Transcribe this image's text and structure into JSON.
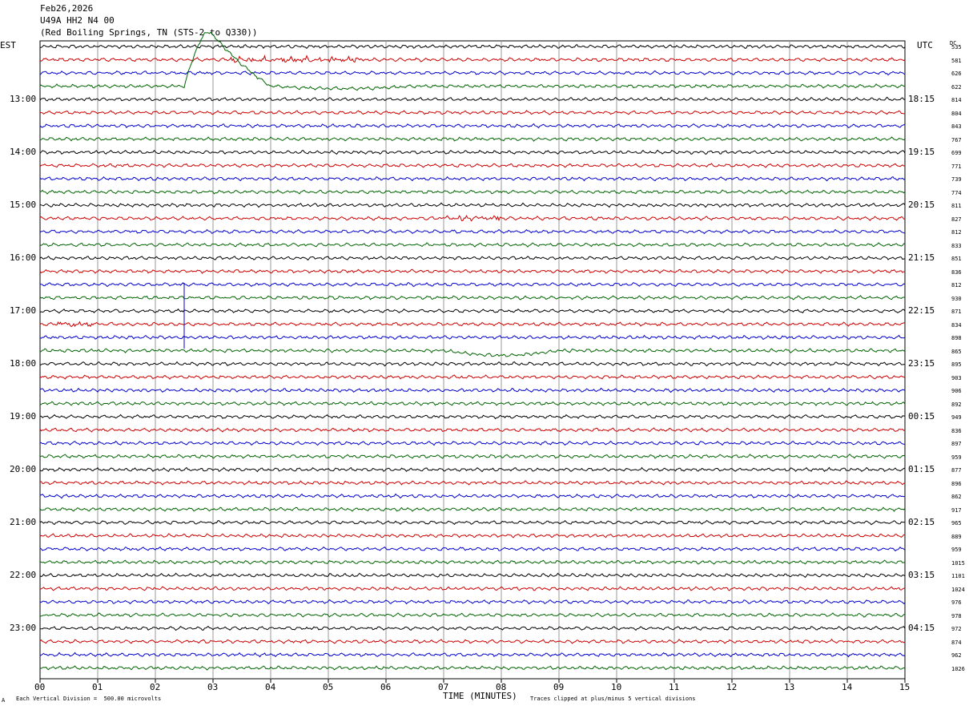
{
  "header": {
    "date": "Feb26,2026",
    "channel": "U49A HH2 N4 00",
    "site": "(Red Boiling Springs, TN (STS-2 to Q330))"
  },
  "left_tz": "EST",
  "right_tz": "UTC",
  "dc_label": "DC",
  "left_hours": [
    "13:00",
    "14:00",
    "15:00",
    "16:00",
    "17:00",
    "18:00",
    "19:00",
    "20:00",
    "21:00",
    "22:00",
    "23:00"
  ],
  "right_hours": [
    "18:15",
    "19:15",
    "20:15",
    "21:15",
    "22:15",
    "23:15",
    "00:15",
    "01:15",
    "02:15",
    "03:15",
    "04:15"
  ],
  "dc_values": [
    "535",
    "581",
    "626",
    "622",
    "814",
    "804",
    "843",
    "767",
    "699",
    "771",
    "739",
    "774",
    "811",
    "827",
    "812",
    "833",
    "851",
    "836",
    "812",
    "930",
    "871",
    "834",
    "898",
    "865",
    "895",
    "903",
    "906",
    "892",
    "949",
    "836",
    "897",
    "959",
    "877",
    "896",
    "862",
    "917",
    "965",
    "889",
    "959",
    "1015",
    "1101",
    "1024",
    "976",
    "978",
    "972",
    "874",
    "962",
    "1026"
  ],
  "x_ticks": [
    "00",
    "01",
    "02",
    "03",
    "04",
    "05",
    "06",
    "07",
    "08",
    "09",
    "10",
    "11",
    "12",
    "13",
    "14",
    "15"
  ],
  "x_axis_title": "TIME (MINUTES)",
  "footer_left": "Each Vertical Division =  500.00 microvolts",
  "footer_right": "Traces clipped at plus/minus 5 vertical divisions",
  "footer_mark": "A",
  "colors": {
    "trace_cycle": [
      "#000000",
      "#cc0000",
      "#0000cc",
      "#006400"
    ],
    "grid": "#999999"
  },
  "chart_data": {
    "type": "line",
    "title": "Feb26,2026 U49A HH2 N4 00 (Red Boiling Springs, TN (STS-2 to Q330))",
    "xlabel": "TIME (MINUTES)",
    "ylabel": "",
    "x_range": [
      0,
      15
    ],
    "trace_count": 48,
    "trace_interval_minutes": 15,
    "units_per_division": "500.00 microvolts",
    "events": [
      {
        "trace": 3,
        "x_start": 2.5,
        "x_peak": 2.95,
        "x_end": 4.0,
        "kind": "long-period bump"
      },
      {
        "trace": 1,
        "x_start": 3.3,
        "x_end": 5.6,
        "kind": "noise burst"
      },
      {
        "trace": 21,
        "x_start": 0.3,
        "x_end": 1.0,
        "kind": "noise burst"
      },
      {
        "trace": 13,
        "x_start": 7.0,
        "x_end": 8.0,
        "kind": "noise burst"
      },
      {
        "trace": 22,
        "x": 2.5,
        "kind": "vertical spike"
      },
      {
        "trace": 23,
        "x_start": 7.0,
        "x_end": 9.0,
        "kind": "long-period dip"
      }
    ]
  }
}
